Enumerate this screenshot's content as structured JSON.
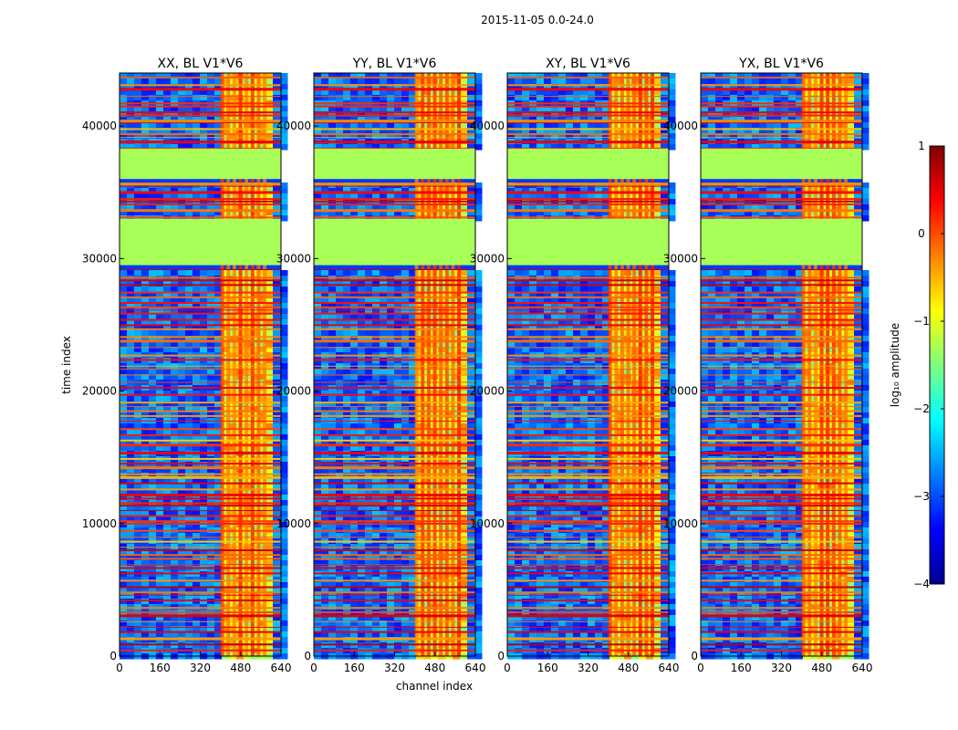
{
  "suptitle": "2015-11-05 0.0-24.0",
  "xlabel": "channel index",
  "ylabel": "time index",
  "colorbar": {
    "label": "log₁₀ amplitude",
    "ticks": [
      "1",
      "0",
      "−1",
      "−2",
      "−3",
      "−4"
    ],
    "range": [
      -4,
      1
    ]
  },
  "chart_data": {
    "type": "heatmap",
    "title": "2015-11-05 0.0-24.0",
    "xlabel": "channel index",
    "ylabel": "time index",
    "x_range": [
      0,
      640
    ],
    "y_range": [
      0,
      44000
    ],
    "x_ticks": [
      "0",
      "160",
      "320",
      "480",
      "640"
    ],
    "y_ticks": [
      "0",
      "10000",
      "20000",
      "30000",
      "40000"
    ],
    "x_tick_values": [
      0,
      160,
      320,
      480,
      640
    ],
    "y_tick_values": [
      0,
      10000,
      20000,
      30000,
      40000
    ],
    "color_scale": "jet",
    "color_range": [
      -4,
      1
    ],
    "panels": [
      {
        "title": "XX, BL V1*V6"
      },
      {
        "title": "YY, BL V1*V6"
      },
      {
        "title": "XY, BL V1*V6"
      },
      {
        "title": "YX, BL V1*V6"
      }
    ],
    "flagged_time_bands": [
      [
        29500,
        33000
      ],
      [
        36000,
        38300
      ]
    ],
    "flag_value": -1.3,
    "rfi_channel_band": [
      400,
      590
    ]
  }
}
